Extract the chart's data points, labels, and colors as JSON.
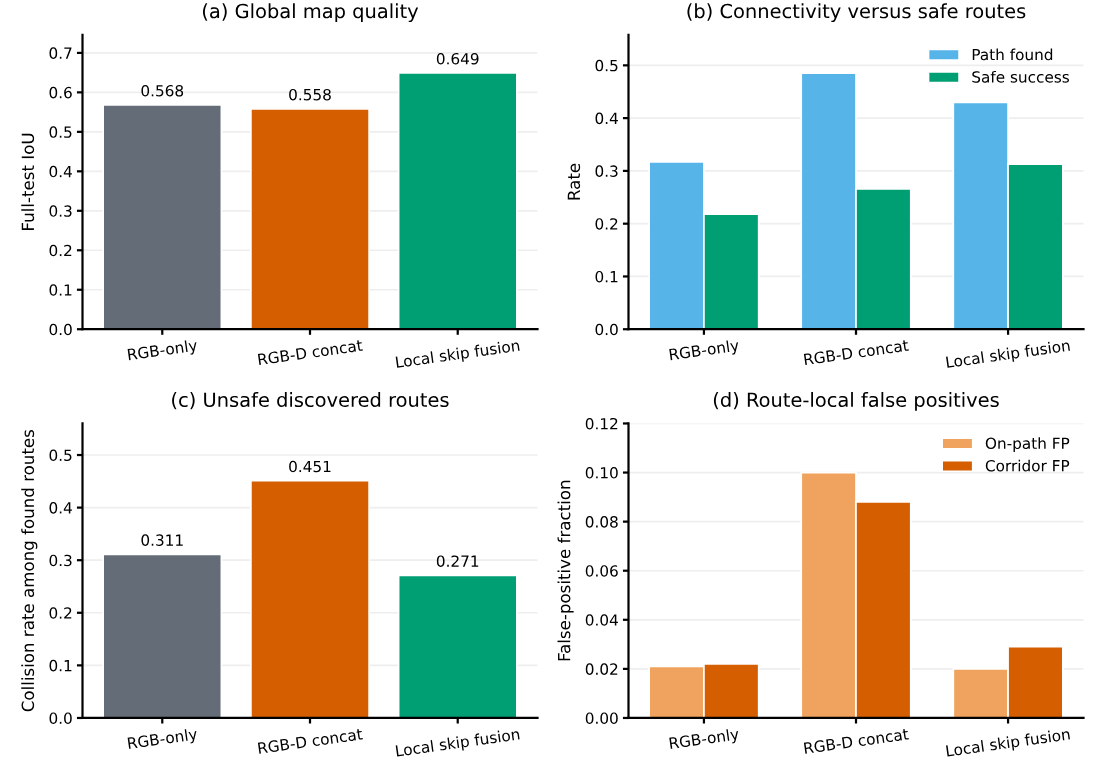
{
  "chart_data": [
    {
      "type": "bar",
      "title": "(a) Global map quality",
      "ylabel": "Full-test IoU",
      "categories": [
        "RGB-only",
        "RGB-D concat",
        "Local skip fusion"
      ],
      "values": [
        0.568,
        0.558,
        0.649
      ],
      "colors": [
        "#636c77",
        "#d55e00",
        "#009e73"
      ],
      "data_labels": true,
      "ylim": [
        0,
        0.746
      ],
      "yticks": [
        {
          "value": 0,
          "label": "0.0"
        },
        0.1,
        0.2,
        0.3,
        0.4,
        0.5,
        0.6,
        0.7
      ],
      "grid": "y",
      "legend": false
    },
    {
      "type": "bar",
      "title": "(b) Connectivity versus safe routes",
      "ylabel": "Rate",
      "categories": [
        "RGB-only",
        "RGB-D concat",
        "Local skip fusion"
      ],
      "series": [
        {
          "name": "Path found",
          "color": "#56b4e9",
          "values": [
            0.317,
            0.485,
            0.43
          ]
        },
        {
          "name": "Safe success",
          "color": "#009e73",
          "values": [
            0.218,
            0.266,
            0.313
          ]
        }
      ],
      "ylim": [
        0,
        0.558
      ],
      "yticks": [
        {
          "value": 0,
          "label": "0.0"
        },
        0.1,
        0.2,
        0.3,
        0.4,
        0.5
      ],
      "grid": "y",
      "legend": "top right"
    },
    {
      "type": "bar",
      "title": "(c) Unsafe discovered routes",
      "ylabel": "Collision rate among found routes",
      "categories": [
        "RGB-only",
        "RGB-D concat",
        "Local skip fusion"
      ],
      "values": [
        0.311,
        0.451,
        0.271
      ],
      "colors": [
        "#636c77",
        "#d55e00",
        "#009e73"
      ],
      "data_labels": true,
      "ylim": [
        0,
        0.56
      ],
      "yticks": [
        {
          "value": 0,
          "label": "0.0"
        },
        0.1,
        0.2,
        0.3,
        0.4,
        0.5
      ],
      "grid": "y",
      "legend": false
    },
    {
      "type": "bar",
      "title": "(d) Route-local false positives",
      "ylabel": "False-positive fraction",
      "categories": [
        "RGB-only",
        "RGB-D concat",
        "Local skip fusion"
      ],
      "series": [
        {
          "name": "On-path FP",
          "color": "#f0a35e",
          "values": [
            0.021,
            0.1,
            0.02
          ]
        },
        {
          "name": "Corridor FP",
          "color": "#d55e00",
          "values": [
            0.022,
            0.088,
            0.029
          ]
        }
      ],
      "ylim": [
        0,
        0.12
      ],
      "yticks": [
        {
          "value": 0.0,
          "label": "0.00"
        },
        {
          "value": 0.02,
          "label": "0.02"
        },
        {
          "value": 0.04,
          "label": "0.04"
        },
        {
          "value": 0.06,
          "label": "0.06"
        },
        {
          "value": 0.08,
          "label": "0.08"
        },
        {
          "value": 0.1,
          "label": "0.10"
        },
        {
          "value": 0.12,
          "label": "0.12"
        }
      ],
      "grid": "y",
      "legend": "top right"
    }
  ]
}
